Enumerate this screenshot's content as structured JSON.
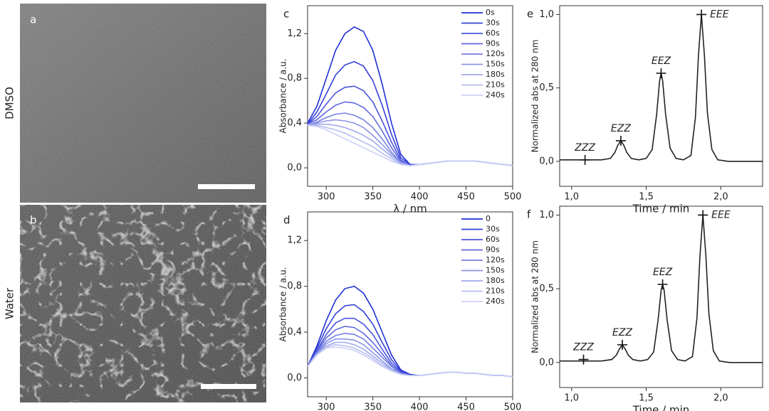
{
  "images": [
    {
      "label": "a",
      "condition": "DMSO"
    },
    {
      "label": "b",
      "condition": "Water"
    }
  ],
  "chart_data": [
    {
      "type": "line",
      "panel": "c",
      "ylabel": "Absorbance / a.u.",
      "xlabel": "λ / nm",
      "x": [
        280,
        290,
        300,
        310,
        320,
        330,
        340,
        350,
        360,
        370,
        380,
        390,
        400,
        410,
        420,
        430,
        440,
        450,
        460,
        470,
        480,
        490,
        500
      ],
      "xlim": [
        280,
        500
      ],
      "xticks": [
        300,
        350,
        400,
        450,
        500
      ],
      "ylim": [
        -0.165,
        1.45
      ],
      "yticks": [
        {
          "value": 0,
          "label": "0,0"
        },
        {
          "value": 0.4,
          "label": "0,4"
        },
        {
          "value": 0.8,
          "label": "0,8"
        },
        {
          "value": 1.2,
          "label": "1,2"
        }
      ],
      "legend": "upper right",
      "series": [
        {
          "name": "0s",
          "color": "#1f2fd6",
          "values": [
            0.4,
            0.55,
            0.8,
            1.05,
            1.2,
            1.26,
            1.22,
            1.05,
            0.75,
            0.4,
            0.12,
            0.03,
            0.03,
            0.04,
            0.05,
            0.06,
            0.06,
            0.06,
            0.06,
            0.05,
            0.04,
            0.03,
            0.02
          ]
        },
        {
          "name": "30s",
          "color": "#3540d8",
          "values": [
            0.39,
            0.5,
            0.66,
            0.83,
            0.92,
            0.95,
            0.91,
            0.78,
            0.56,
            0.3,
            0.09,
            0.03,
            0.03,
            0.04,
            0.05,
            0.06,
            0.06,
            0.06,
            0.06,
            0.05,
            0.04,
            0.03,
            0.02
          ]
        },
        {
          "name": "60s",
          "color": "#4a55db",
          "values": [
            0.39,
            0.46,
            0.57,
            0.67,
            0.72,
            0.73,
            0.69,
            0.59,
            0.42,
            0.23,
            0.07,
            0.02,
            0.03,
            0.04,
            0.05,
            0.06,
            0.06,
            0.06,
            0.06,
            0.05,
            0.04,
            0.03,
            0.02
          ]
        },
        {
          "name": "90s",
          "color": "#5f69df",
          "values": [
            0.39,
            0.43,
            0.5,
            0.56,
            0.59,
            0.58,
            0.54,
            0.46,
            0.33,
            0.18,
            0.06,
            0.02,
            0.03,
            0.04,
            0.05,
            0.06,
            0.06,
            0.06,
            0.06,
            0.05,
            0.04,
            0.03,
            0.02
          ]
        },
        {
          "name": "120s",
          "color": "#7480e3",
          "values": [
            0.38,
            0.41,
            0.45,
            0.48,
            0.49,
            0.47,
            0.43,
            0.36,
            0.26,
            0.14,
            0.05,
            0.02,
            0.03,
            0.04,
            0.05,
            0.06,
            0.06,
            0.06,
            0.06,
            0.05,
            0.04,
            0.03,
            0.02
          ]
        },
        {
          "name": "150s",
          "color": "#8a94e7",
          "values": [
            0.38,
            0.4,
            0.42,
            0.43,
            0.42,
            0.4,
            0.36,
            0.29,
            0.21,
            0.12,
            0.05,
            0.02,
            0.03,
            0.04,
            0.05,
            0.06,
            0.06,
            0.06,
            0.06,
            0.05,
            0.04,
            0.03,
            0.02
          ]
        },
        {
          "name": "180s",
          "color": "#a0a8eb",
          "values": [
            0.38,
            0.39,
            0.39,
            0.38,
            0.36,
            0.33,
            0.29,
            0.24,
            0.17,
            0.1,
            0.04,
            0.02,
            0.03,
            0.04,
            0.05,
            0.06,
            0.06,
            0.06,
            0.06,
            0.05,
            0.04,
            0.03,
            0.02
          ]
        },
        {
          "name": "210s",
          "color": "#b5bcef",
          "values": [
            0.38,
            0.38,
            0.36,
            0.34,
            0.31,
            0.27,
            0.23,
            0.19,
            0.13,
            0.08,
            0.03,
            0.02,
            0.03,
            0.04,
            0.05,
            0.06,
            0.06,
            0.06,
            0.06,
            0.05,
            0.04,
            0.03,
            0.02
          ]
        },
        {
          "name": "240s",
          "color": "#cbd0f4",
          "values": [
            0.38,
            0.37,
            0.34,
            0.3,
            0.26,
            0.22,
            0.18,
            0.14,
            0.1,
            0.06,
            0.03,
            0.02,
            0.03,
            0.04,
            0.05,
            0.06,
            0.06,
            0.06,
            0.06,
            0.05,
            0.04,
            0.03,
            0.02
          ]
        }
      ]
    },
    {
      "type": "line",
      "panel": "d",
      "ylabel": "Absorbance / a.u.",
      "xlabel": "λ / nm",
      "x": [
        280,
        290,
        300,
        310,
        320,
        330,
        340,
        350,
        360,
        370,
        380,
        390,
        400,
        410,
        420,
        430,
        440,
        450,
        460,
        470,
        480,
        490,
        500
      ],
      "xlim": [
        280,
        500
      ],
      "xticks": [
        300,
        350,
        400,
        450,
        500
      ],
      "ylim": [
        -0.165,
        1.45
      ],
      "yticks": [
        {
          "value": 0,
          "label": "0,0"
        },
        {
          "value": 0.4,
          "label": "0,4"
        },
        {
          "value": 0.8,
          "label": "0,8"
        },
        {
          "value": 1.2,
          "label": "1,2"
        }
      ],
      "legend": "upper right",
      "series": [
        {
          "name": "0",
          "color": "#1f2fd6",
          "values": [
            0.1,
            0.28,
            0.5,
            0.68,
            0.78,
            0.8,
            0.74,
            0.6,
            0.4,
            0.2,
            0.07,
            0.03,
            0.02,
            0.03,
            0.04,
            0.05,
            0.05,
            0.04,
            0.04,
            0.03,
            0.02,
            0.02,
            0.01
          ]
        },
        {
          "name": "30s",
          "color": "#3540d8",
          "values": [
            0.1,
            0.26,
            0.43,
            0.56,
            0.63,
            0.64,
            0.58,
            0.47,
            0.31,
            0.16,
            0.06,
            0.03,
            0.02,
            0.03,
            0.04,
            0.05,
            0.05,
            0.04,
            0.04,
            0.03,
            0.02,
            0.02,
            0.01
          ]
        },
        {
          "name": "60s",
          "color": "#4a55db",
          "values": [
            0.1,
            0.24,
            0.38,
            0.48,
            0.52,
            0.52,
            0.47,
            0.38,
            0.25,
            0.13,
            0.05,
            0.02,
            0.02,
            0.03,
            0.04,
            0.05,
            0.05,
            0.04,
            0.04,
            0.03,
            0.02,
            0.02,
            0.01
          ]
        },
        {
          "name": "90s",
          "color": "#5f69df",
          "values": [
            0.1,
            0.23,
            0.35,
            0.42,
            0.45,
            0.44,
            0.39,
            0.31,
            0.21,
            0.11,
            0.04,
            0.02,
            0.02,
            0.03,
            0.04,
            0.05,
            0.05,
            0.04,
            0.04,
            0.03,
            0.02,
            0.02,
            0.01
          ]
        },
        {
          "name": "120s",
          "color": "#7480e3",
          "values": [
            0.1,
            0.22,
            0.32,
            0.37,
            0.39,
            0.38,
            0.34,
            0.26,
            0.18,
            0.1,
            0.04,
            0.02,
            0.02,
            0.03,
            0.04,
            0.05,
            0.05,
            0.04,
            0.04,
            0.03,
            0.02,
            0.02,
            0.01
          ]
        },
        {
          "name": "150s",
          "color": "#8a94e7",
          "values": [
            0.1,
            0.21,
            0.3,
            0.34,
            0.34,
            0.33,
            0.29,
            0.22,
            0.15,
            0.08,
            0.04,
            0.02,
            0.02,
            0.03,
            0.04,
            0.05,
            0.05,
            0.04,
            0.04,
            0.03,
            0.02,
            0.02,
            0.01
          ]
        },
        {
          "name": "180s",
          "color": "#a0a8eb",
          "values": [
            0.1,
            0.21,
            0.28,
            0.31,
            0.31,
            0.29,
            0.25,
            0.19,
            0.13,
            0.07,
            0.03,
            0.02,
            0.02,
            0.03,
            0.04,
            0.05,
            0.05,
            0.04,
            0.04,
            0.03,
            0.02,
            0.02,
            0.01
          ]
        },
        {
          "name": "210s",
          "color": "#b5bcef",
          "values": [
            0.1,
            0.2,
            0.27,
            0.29,
            0.28,
            0.26,
            0.22,
            0.17,
            0.11,
            0.07,
            0.03,
            0.02,
            0.02,
            0.03,
            0.04,
            0.05,
            0.05,
            0.04,
            0.04,
            0.03,
            0.02,
            0.02,
            0.01
          ]
        },
        {
          "name": "240s",
          "color": "#cbd0f4",
          "values": [
            0.1,
            0.2,
            0.26,
            0.27,
            0.26,
            0.24,
            0.2,
            0.15,
            0.1,
            0.06,
            0.03,
            0.02,
            0.02,
            0.03,
            0.04,
            0.05,
            0.05,
            0.04,
            0.04,
            0.03,
            0.02,
            0.02,
            0.01
          ]
        }
      ]
    },
    {
      "type": "line",
      "panel": "e",
      "ylabel": "Normalized abs at 280 nm",
      "xlabel": "Time / min",
      "x": [
        0.92,
        1.0,
        1.1,
        1.2,
        1.26,
        1.29,
        1.31,
        1.33,
        1.35,
        1.37,
        1.4,
        1.45,
        1.5,
        1.54,
        1.57,
        1.59,
        1.6,
        1.61,
        1.63,
        1.66,
        1.7,
        1.75,
        1.8,
        1.83,
        1.85,
        1.87,
        1.89,
        1.91,
        1.94,
        1.98,
        2.05,
        2.15,
        2.28
      ],
      "xlim": [
        0.92,
        2.28
      ],
      "xticks": [
        {
          "value": 1.0,
          "label": "1,0"
        },
        {
          "value": 1.5,
          "label": "1,5"
        },
        {
          "value": 2.0,
          "label": "2,0"
        }
      ],
      "ylim": [
        -0.17,
        1.06
      ],
      "yticks": [
        {
          "value": 0,
          "label": "0,0"
        },
        {
          "value": 0.5,
          "label": "0,5"
        },
        {
          "value": 1.0,
          "label": "1,0"
        }
      ],
      "series": [
        {
          "color": "#222222",
          "values": [
            0.01,
            0.01,
            0.01,
            0.01,
            0.02,
            0.06,
            0.11,
            0.14,
            0.11,
            0.06,
            0.02,
            0.01,
            0.02,
            0.08,
            0.32,
            0.55,
            0.6,
            0.55,
            0.32,
            0.09,
            0.02,
            0.01,
            0.04,
            0.3,
            0.72,
            1.0,
            0.72,
            0.33,
            0.08,
            0.01,
            0,
            0,
            0
          ]
        }
      ],
      "annotations": [
        {
          "text": "ZZZ",
          "x": 1.09,
          "y": 0.01
        },
        {
          "text": "EZZ",
          "x": 1.33,
          "y": 0.14
        },
        {
          "text": "EEZ",
          "x": 1.6,
          "y": 0.6
        },
        {
          "text": "EEE",
          "x": 1.87,
          "y": 1.0
        }
      ]
    },
    {
      "type": "line",
      "panel": "f",
      "ylabel": "Normalized abs at 280 nm",
      "xlabel": "Time / min",
      "x": [
        0.92,
        1.0,
        1.1,
        1.2,
        1.27,
        1.3,
        1.32,
        1.34,
        1.36,
        1.38,
        1.41,
        1.46,
        1.51,
        1.55,
        1.58,
        1.6,
        1.61,
        1.62,
        1.64,
        1.67,
        1.71,
        1.76,
        1.81,
        1.84,
        1.86,
        1.88,
        1.9,
        1.92,
        1.95,
        1.99,
        2.06,
        2.15,
        2.28
      ],
      "xlim": [
        0.92,
        2.28
      ],
      "xticks": [
        {
          "value": 1.0,
          "label": "1,0"
        },
        {
          "value": 1.5,
          "label": "1,5"
        },
        {
          "value": 2.0,
          "label": "2,0"
        }
      ],
      "ylim": [
        -0.17,
        1.06
      ],
      "yticks": [
        {
          "value": 0,
          "label": "0,0"
        },
        {
          "value": 0.5,
          "label": "0,5"
        },
        {
          "value": 1.0,
          "label": "1,0"
        }
      ],
      "series": [
        {
          "color": "#222222",
          "values": [
            0.01,
            0.01,
            0.01,
            0.01,
            0.02,
            0.05,
            0.09,
            0.12,
            0.09,
            0.05,
            0.02,
            0.01,
            0.02,
            0.07,
            0.29,
            0.49,
            0.53,
            0.49,
            0.29,
            0.08,
            0.02,
            0.01,
            0.04,
            0.3,
            0.72,
            1.0,
            0.72,
            0.33,
            0.08,
            0.01,
            0,
            0,
            0
          ]
        }
      ],
      "annotations": [
        {
          "text": "ZZZ",
          "x": 1.08,
          "y": 0.02
        },
        {
          "text": "EZZ",
          "x": 1.34,
          "y": 0.12
        },
        {
          "text": "EEZ",
          "x": 1.61,
          "y": 0.53
        },
        {
          "text": "EEE",
          "x": 1.88,
          "y": 1.0
        }
      ]
    }
  ]
}
